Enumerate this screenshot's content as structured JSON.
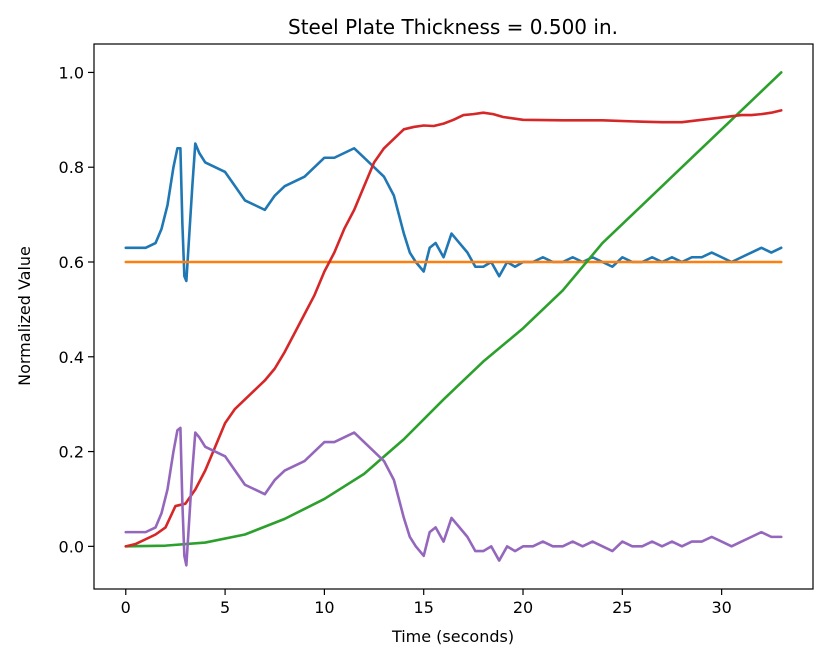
{
  "chart_data": {
    "type": "line",
    "title": "Steel Plate Thickness = 0.500 in.",
    "xlabel": "Time (seconds)",
    "ylabel": "Normalized Value",
    "xlim": [
      -1.6,
      34.6
    ],
    "ylim": [
      -0.09,
      1.06
    ],
    "xticks": [
      0,
      5,
      10,
      15,
      20,
      25,
      30
    ],
    "yticks": [
      0.0,
      0.2,
      0.4,
      0.6,
      0.8,
      1.0
    ],
    "xtick_labels": [
      "0",
      "5",
      "10",
      "15",
      "20",
      "25",
      "30"
    ],
    "ytick_labels": [
      "0.0",
      "0.2",
      "0.4",
      "0.6",
      "0.8",
      "1.0"
    ],
    "grid": false,
    "series": [
      {
        "name": "blue",
        "color": "#1f77b4",
        "x": [
          0,
          0.5,
          1,
          1.5,
          1.8,
          2.1,
          2.4,
          2.6,
          2.75,
          2.85,
          2.95,
          3.05,
          3.2,
          3.35,
          3.5,
          3.7,
          4.0,
          4.5,
          5.0,
          5.5,
          6.0,
          6.5,
          7.0,
          7.5,
          8.0,
          8.5,
          9.0,
          9.5,
          10.0,
          10.5,
          11.0,
          11.5,
          12.0,
          12.5,
          13.0,
          13.5,
          14.0,
          14.3,
          14.6,
          15.0,
          15.3,
          15.6,
          16.0,
          16.4,
          16.8,
          17.2,
          17.6,
          18.0,
          18.4,
          18.8,
          19.2,
          19.6,
          20.0,
          20.5,
          21.0,
          21.5,
          22.0,
          22.5,
          23.0,
          23.5,
          24.0,
          24.5,
          25.0,
          25.5,
          26.0,
          26.5,
          27.0,
          27.5,
          28.0,
          28.5,
          29.0,
          29.5,
          30.0,
          30.5,
          31.0,
          31.5,
          32.0,
          32.5,
          33.0
        ],
        "y": [
          0.63,
          0.63,
          0.63,
          0.64,
          0.67,
          0.72,
          0.8,
          0.84,
          0.84,
          0.68,
          0.57,
          0.56,
          0.66,
          0.76,
          0.85,
          0.83,
          0.81,
          0.8,
          0.79,
          0.76,
          0.73,
          0.72,
          0.71,
          0.74,
          0.76,
          0.77,
          0.78,
          0.8,
          0.82,
          0.82,
          0.83,
          0.84,
          0.82,
          0.8,
          0.78,
          0.74,
          0.66,
          0.62,
          0.6,
          0.58,
          0.63,
          0.64,
          0.61,
          0.66,
          0.64,
          0.62,
          0.59,
          0.59,
          0.6,
          0.57,
          0.6,
          0.59,
          0.6,
          0.6,
          0.61,
          0.6,
          0.6,
          0.61,
          0.6,
          0.61,
          0.6,
          0.59,
          0.61,
          0.6,
          0.6,
          0.61,
          0.6,
          0.61,
          0.6,
          0.61,
          0.61,
          0.62,
          0.61,
          0.6,
          0.61,
          0.62,
          0.63,
          0.62,
          0.63
        ]
      },
      {
        "name": "orange",
        "color": "#ff7f0e",
        "x": [
          0,
          33
        ],
        "y": [
          0.6,
          0.6
        ]
      },
      {
        "name": "green",
        "color": "#2ca02c",
        "x": [
          0,
          2,
          4,
          6,
          8,
          10,
          12,
          14,
          16,
          18,
          20,
          22,
          24,
          26,
          28,
          30,
          32,
          33
        ],
        "y": [
          0.0,
          0.0015,
          0.008,
          0.025,
          0.058,
          0.1,
          0.153,
          0.226,
          0.31,
          0.39,
          0.46,
          0.54,
          0.64,
          0.72,
          0.8,
          0.88,
          0.96,
          1.0
        ]
      },
      {
        "name": "red",
        "color": "#d62728",
        "x": [
          0,
          0.5,
          1,
          1.5,
          2.0,
          2.5,
          3.0,
          3.5,
          4.0,
          4.5,
          5.0,
          5.5,
          6.0,
          6.5,
          7.0,
          7.5,
          8.0,
          8.5,
          9.0,
          9.5,
          10.0,
          10.5,
          11.0,
          11.5,
          12.0,
          12.5,
          13.0,
          13.5,
          14.0,
          14.5,
          15.0,
          15.5,
          16.0,
          16.5,
          17.0,
          17.5,
          18.0,
          18.5,
          19.0,
          20.0,
          22.0,
          24.0,
          26.0,
          27.0,
          28.0,
          29.0,
          30.0,
          31.0,
          31.5,
          32.0,
          32.5,
          33.0
        ],
        "y": [
          0.0,
          0.005,
          0.015,
          0.025,
          0.04,
          0.085,
          0.09,
          0.12,
          0.16,
          0.21,
          0.26,
          0.29,
          0.31,
          0.33,
          0.35,
          0.375,
          0.41,
          0.45,
          0.49,
          0.53,
          0.58,
          0.62,
          0.67,
          0.71,
          0.76,
          0.81,
          0.84,
          0.86,
          0.88,
          0.885,
          0.888,
          0.887,
          0.892,
          0.9,
          0.91,
          0.912,
          0.915,
          0.912,
          0.906,
          0.9,
          0.899,
          0.899,
          0.896,
          0.895,
          0.895,
          0.9,
          0.905,
          0.91,
          0.91,
          0.912,
          0.915,
          0.92
        ]
      },
      {
        "name": "purple",
        "color": "#9467bd",
        "x": [
          0,
          0.5,
          1,
          1.5,
          1.8,
          2.1,
          2.4,
          2.6,
          2.75,
          2.85,
          2.95,
          3.05,
          3.2,
          3.35,
          3.5,
          3.7,
          4.0,
          4.5,
          5.0,
          5.5,
          6.0,
          6.5,
          7.0,
          7.5,
          8.0,
          8.5,
          9.0,
          9.5,
          10.0,
          10.5,
          11.0,
          11.5,
          12.0,
          12.5,
          13.0,
          13.5,
          14.0,
          14.3,
          14.6,
          15.0,
          15.3,
          15.6,
          16.0,
          16.4,
          16.8,
          17.2,
          17.6,
          18.0,
          18.4,
          18.8,
          19.2,
          19.6,
          20.0,
          20.5,
          21.0,
          21.5,
          22.0,
          22.5,
          23.0,
          23.5,
          24.0,
          24.5,
          25.0,
          25.5,
          26.0,
          26.5,
          27.0,
          27.5,
          28.0,
          28.5,
          29.0,
          29.5,
          30.0,
          30.5,
          31.0,
          31.5,
          32.0,
          32.5,
          33.0
        ],
        "y": [
          0.03,
          0.03,
          0.03,
          0.04,
          0.07,
          0.12,
          0.2,
          0.245,
          0.25,
          0.09,
          -0.02,
          -0.04,
          0.06,
          0.16,
          0.24,
          0.23,
          0.21,
          0.2,
          0.19,
          0.16,
          0.13,
          0.12,
          0.11,
          0.14,
          0.16,
          0.17,
          0.18,
          0.2,
          0.22,
          0.22,
          0.23,
          0.24,
          0.22,
          0.2,
          0.18,
          0.14,
          0.06,
          0.02,
          0.0,
          -0.02,
          0.03,
          0.04,
          0.01,
          0.06,
          0.04,
          0.02,
          -0.01,
          -0.01,
          0.0,
          -0.03,
          0.0,
          -0.01,
          0.0,
          0.0,
          0.01,
          0.0,
          0.0,
          0.01,
          0.0,
          0.01,
          0.0,
          -0.01,
          0.01,
          0.0,
          0.0,
          0.01,
          0.0,
          0.01,
          0.0,
          0.01,
          0.01,
          0.02,
          0.01,
          0.0,
          0.01,
          0.02,
          0.03,
          0.02,
          0.02
        ]
      }
    ]
  }
}
